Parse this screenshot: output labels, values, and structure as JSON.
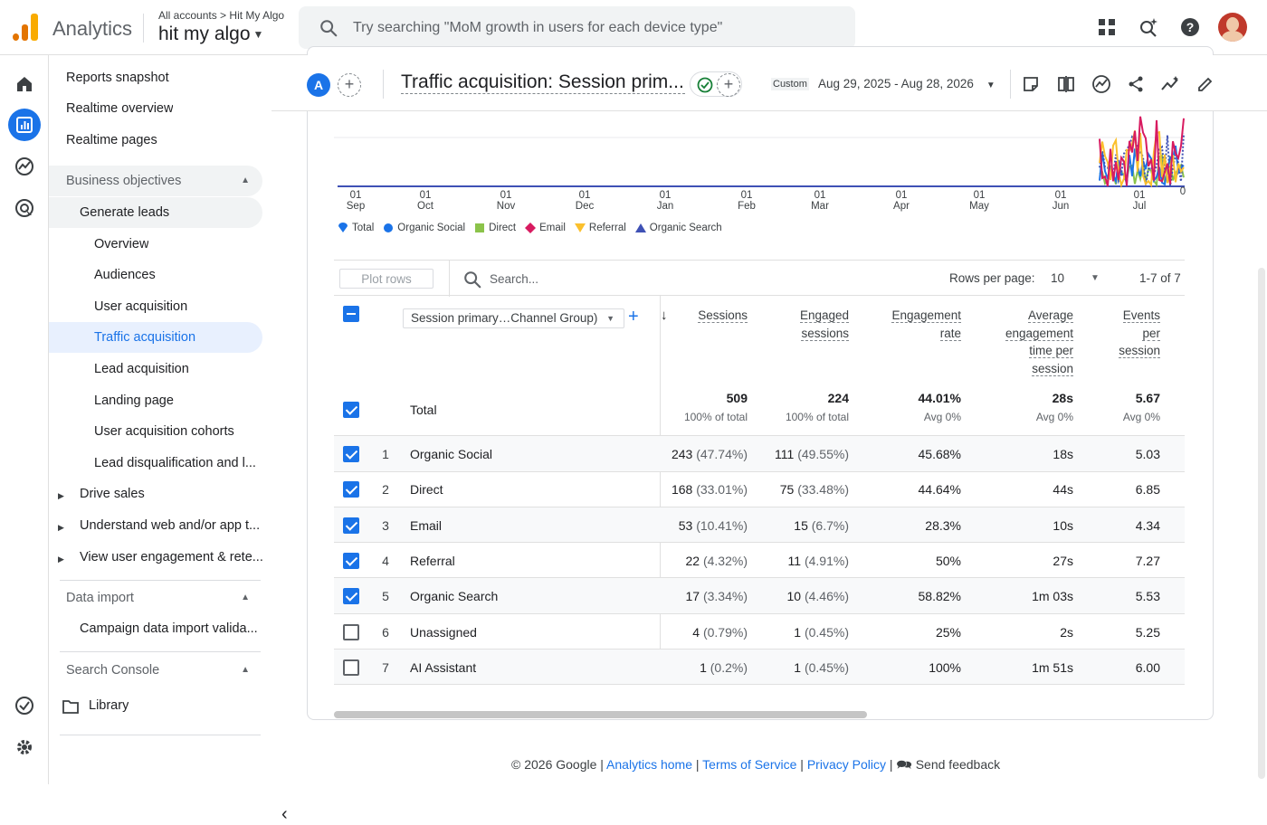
{
  "brand": {
    "name": "Analytics",
    "colors": {
      "bar1": "#f9ab00",
      "bar2": "#e37400",
      "bar3": "#e37400"
    }
  },
  "header": {
    "breadcrumb_all": "All accounts",
    "breadcrumb_sep": ">",
    "breadcrumb_account": "Hit My Algo",
    "property": "hit my algo",
    "search_placeholder": "Try searching \"MoM growth in users for each device type\"",
    "icons": [
      "apps-icon",
      "search-insights-icon",
      "help-icon",
      "account-avatar"
    ]
  },
  "rail": {
    "icons": [
      "home-icon",
      "reports-icon",
      "explore-icon",
      "advertising-icon",
      "admin-check-icon",
      "settings-icon"
    ],
    "active_color": "#1a73e8"
  },
  "nav": {
    "reports_snapshot": "Reports snapshot",
    "realtime_overview": "Realtime overview",
    "realtime_pages": "Realtime pages",
    "business_objectives": "Business objectives",
    "generate_leads": "Generate leads",
    "overview": "Overview",
    "audiences": "Audiences",
    "user_acquisition": "User acquisition",
    "traffic_acquisition": "Traffic acquisition",
    "lead_acquisition": "Lead acquisition",
    "landing_page": "Landing page",
    "user_acquisition_cohorts": "User acquisition cohorts",
    "lead_disqualification": "Lead disqualification and l...",
    "drive_sales": "Drive sales",
    "understand_web": "Understand web and/or app t...",
    "view_user_engagement": "View user engagement & rete...",
    "data_import": "Data import",
    "campaign_data_import": "Campaign data import valida...",
    "search_console": "Search Console",
    "library": "Library"
  },
  "report": {
    "avatar_letter": "A",
    "title": "Traffic acquisition: Session prim...",
    "custom_label": "Custom",
    "date_range": "Aug 29, 2025 - Aug 28, 2026",
    "toolbar_icons": [
      "edit-comparisons-icon",
      "compare-icon",
      "insights-icon",
      "share-icon",
      "trend-icon",
      "edit-icon"
    ]
  },
  "chart_data": {
    "type": "line",
    "x_ticks": [
      {
        "day": "01",
        "month": "Sep"
      },
      {
        "day": "01",
        "month": "Oct"
      },
      {
        "day": "01",
        "month": "Nov"
      },
      {
        "day": "01",
        "month": "Dec"
      },
      {
        "day": "01",
        "month": "Jan"
      },
      {
        "day": "01",
        "month": "Feb"
      },
      {
        "day": "01",
        "month": "Mar"
      },
      {
        "day": "01",
        "month": "Apr"
      },
      {
        "day": "01",
        "month": "May"
      },
      {
        "day": "01",
        "month": "Jun"
      },
      {
        "day": "01",
        "month": "Jul"
      }
    ],
    "y_tick_visible": "0",
    "series": [
      {
        "name": "Total",
        "color": "#1a73e8",
        "marker": "pin"
      },
      {
        "name": "Organic Social",
        "color": "#1a73e8",
        "marker": "circle"
      },
      {
        "name": "Direct",
        "color": "#8bc34a",
        "marker": "square"
      },
      {
        "name": "Email",
        "color": "#d81b60",
        "marker": "diamond"
      },
      {
        "name": "Referral",
        "color": "#fbc02d",
        "marker": "triangle-down"
      },
      {
        "name": "Organic Search",
        "color": "#3f51b5",
        "marker": "triangle-up"
      }
    ],
    "grid": true,
    "legend_position": "bottom-left"
  },
  "table": {
    "plot_rows": "Plot rows",
    "search_placeholder": "Search...",
    "rows_per_page_label": "Rows per page:",
    "rows_per_page": "10",
    "range": "1-7 of 7",
    "dimension": "Session primary…Channel Group)",
    "columns": [
      {
        "label": "Sessions",
        "lines": [
          "Sessions"
        ]
      },
      {
        "label": "Engaged sessions",
        "lines": [
          "Engaged",
          "sessions"
        ]
      },
      {
        "label": "Engagement rate",
        "lines": [
          "Engagement",
          "rate"
        ]
      },
      {
        "label": "Average engagement time per session",
        "lines": [
          "Average",
          "engagement",
          "time per",
          "session"
        ]
      },
      {
        "label": "Events per session",
        "lines": [
          "Events",
          "per",
          "session"
        ]
      }
    ],
    "total": {
      "label": "Total",
      "values": [
        "509",
        "224",
        "44.01%",
        "28s",
        "5.67"
      ],
      "subs": [
        "100% of total",
        "100% of total",
        "Avg 0%",
        "Avg 0%",
        "Avg 0%"
      ]
    },
    "rows": [
      {
        "n": "1",
        "name": "Organic Social",
        "checked": true,
        "sessions": "243",
        "sessions_pct": "(47.74%)",
        "engaged": "111",
        "engaged_pct": "(49.55%)",
        "rate": "45.68%",
        "time": "18s",
        "events": "5.03"
      },
      {
        "n": "2",
        "name": "Direct",
        "checked": true,
        "sessions": "168",
        "sessions_pct": "(33.01%)",
        "engaged": "75",
        "engaged_pct": "(33.48%)",
        "rate": "44.64%",
        "time": "44s",
        "events": "6.85"
      },
      {
        "n": "3",
        "name": "Email",
        "checked": true,
        "sessions": "53",
        "sessions_pct": "(10.41%)",
        "engaged": "15",
        "engaged_pct": "(6.7%)",
        "rate": "28.3%",
        "time": "10s",
        "events": "4.34"
      },
      {
        "n": "4",
        "name": "Referral",
        "checked": true,
        "sessions": "22",
        "sessions_pct": "(4.32%)",
        "engaged": "11",
        "engaged_pct": "(4.91%)",
        "rate": "50%",
        "time": "27s",
        "events": "7.27"
      },
      {
        "n": "5",
        "name": "Organic Search",
        "checked": true,
        "sessions": "17",
        "sessions_pct": "(3.34%)",
        "engaged": "10",
        "engaged_pct": "(4.46%)",
        "rate": "58.82%",
        "time": "1m 03s",
        "events": "5.53"
      },
      {
        "n": "6",
        "name": "Unassigned",
        "checked": false,
        "sessions": "4",
        "sessions_pct": "(0.79%)",
        "engaged": "1",
        "engaged_pct": "(0.45%)",
        "rate": "25%",
        "time": "2s",
        "events": "5.25"
      },
      {
        "n": "7",
        "name": "AI Assistant",
        "checked": false,
        "sessions": "1",
        "sessions_pct": "(0.2%)",
        "engaged": "1",
        "engaged_pct": "(0.45%)",
        "rate": "100%",
        "time": "1m 51s",
        "events": "6.00"
      }
    ]
  },
  "footer": {
    "copyright": "© 2026 Google |",
    "analytics_home": "Analytics home",
    "sep": "|",
    "terms": "Terms of Service",
    "privacy": "Privacy Policy",
    "send_feedback": "Send feedback"
  }
}
